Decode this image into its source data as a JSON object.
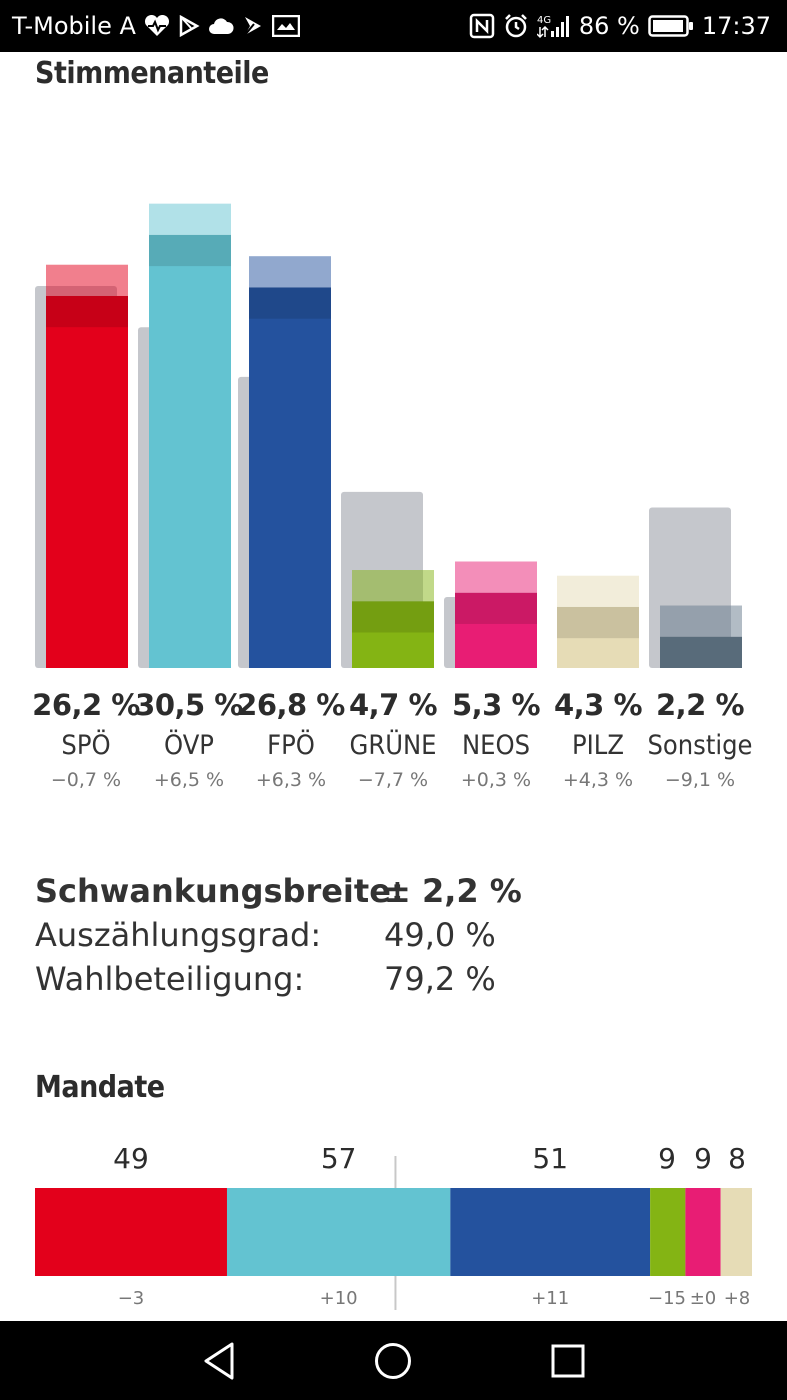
{
  "status_bar": {
    "carrier": "T-Mobile A",
    "battery": "86 %",
    "time": "17:37",
    "icons_left": [
      "heart-rate-icon",
      "play-store-icon",
      "cloud-icon",
      "flag-icon",
      "mail-icon"
    ],
    "icons_right": [
      "nfc-icon",
      "alarm-icon",
      "signal-4g-icon",
      "battery-icon"
    ]
  },
  "vote_share": {
    "heading": "Stimmenanteile",
    "parties": [
      {
        "pct": "26,2 %",
        "name": "SPÖ",
        "diff": "−0,7 %"
      },
      {
        "pct": "30,5 %",
        "name": "ÖVP",
        "diff": "+6,5 %"
      },
      {
        "pct": "26,8 %",
        "name": "FPÖ",
        "diff": "+6,3 %"
      },
      {
        "pct": "4,7 %",
        "name": "GRÜNE",
        "diff": "−7,7 %"
      },
      {
        "pct": "5,3 %",
        "name": "NEOS",
        "diff": "+0,3 %"
      },
      {
        "pct": "4,3 %",
        "name": "PILZ",
        "diff": "+4,3 %"
      },
      {
        "pct": "2,2 %",
        "name": "Sonstige",
        "diff": "−9,1 %"
      }
    ]
  },
  "stats": {
    "margin_label": "Schwankungsbreite:",
    "margin_value": "± 2,2 %",
    "counted_label": "Auszählungsgrad:",
    "counted_value": "49,0 %",
    "turnout_label": "Wahlbeteiligung:",
    "turnout_value": "79,2 %"
  },
  "mandates": {
    "heading": "Mandate",
    "seats": [
      {
        "count": "49",
        "diff": "−3"
      },
      {
        "count": "57",
        "diff": "+10"
      },
      {
        "count": "51",
        "diff": "+11"
      },
      {
        "count": "9",
        "diff": "−15"
      },
      {
        "count": "9",
        "diff": "±0"
      },
      {
        "count": "8",
        "diff": "+8"
      }
    ]
  },
  "chart_data": [
    {
      "type": "bar",
      "title": "Stimmenanteile",
      "categories": [
        "SPÖ",
        "ÖVP",
        "FPÖ",
        "GRÜNE",
        "NEOS",
        "PILZ",
        "Sonstige"
      ],
      "series": [
        {
          "values": [
            26.2,
            30.5,
            26.8,
            4.7,
            5.3,
            4.3,
            2.2
          ]
        },
        {
          "values": [
            26.9,
            24.0,
            20.5,
            12.4,
            5.0,
            0.0,
            11.3
          ]
        }
      ],
      "margin_of_error": 2.2,
      "colors": [
        "#e3001b",
        "#63c3d1",
        "#24529e",
        "#84b414",
        "#e81d74",
        "#e6dcb6",
        "#657a8b"
      ],
      "previous_color": "#c5c7cc"
    },
    {
      "type": "bar",
      "title": "Mandate",
      "orientation": "horizontal-stacked",
      "categories": [
        "SPÖ",
        "ÖVP",
        "FPÖ",
        "GRÜNE",
        "NEOS",
        "PILZ"
      ],
      "values": [
        49,
        57,
        51,
        9,
        9,
        8
      ],
      "changes": [
        -3,
        10,
        11,
        -15,
        0,
        8
      ],
      "total": 183,
      "majority_marker": 92,
      "colors": [
        "#e3001b",
        "#63c3d1",
        "#24529e",
        "#84b414",
        "#e81d74",
        "#e6dcb6"
      ]
    }
  ],
  "nav": {
    "icons": [
      "back-icon",
      "home-icon",
      "recents-icon"
    ]
  }
}
